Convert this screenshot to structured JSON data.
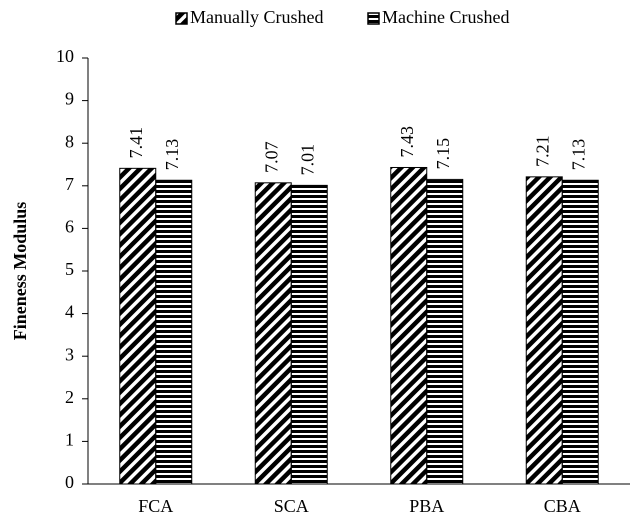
{
  "chart_data": {
    "type": "bar",
    "categories": [
      "FCA",
      "SCA",
      "PBA",
      "CBA"
    ],
    "series": [
      {
        "name": "Manually Crushed",
        "color": "#000000",
        "pattern": "diagonal",
        "values": [
          7.41,
          7.07,
          7.43,
          7.21
        ]
      },
      {
        "name": "Machine Crushed",
        "color": "#000000",
        "pattern": "horizontal",
        "values": [
          7.13,
          7.01,
          7.15,
          7.13
        ]
      }
    ],
    "ylabel": "Fineness Modulus",
    "ylim": [
      0,
      10
    ],
    "yticks": [
      0,
      1,
      2,
      3,
      4,
      5,
      6,
      7,
      8,
      9,
      10
    ],
    "legend": "top",
    "data_labels": true
  }
}
